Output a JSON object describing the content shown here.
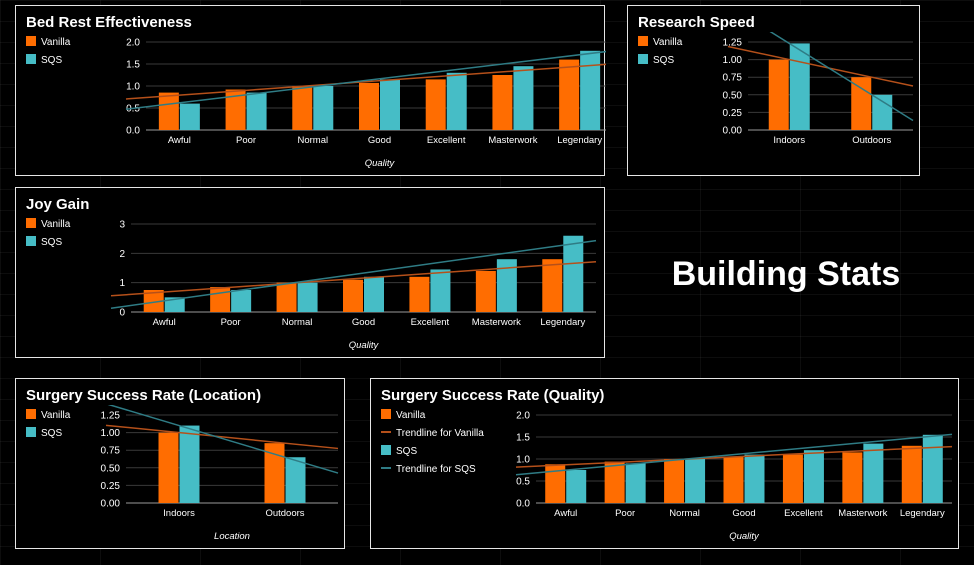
{
  "page_title": "Building Stats",
  "colors": {
    "vanilla": "#ff6d01",
    "sqs": "#46bdc6",
    "trend_vanilla": "#b5501a",
    "trend_sqs": "#2f7c85"
  },
  "chart_data": [
    {
      "id": "bed-rest",
      "type": "bar",
      "title": "Bed Rest Effectiveness",
      "xlabel": "Quality",
      "ylabel": "",
      "categories": [
        "Awful",
        "Poor",
        "Normal",
        "Good",
        "Excellent",
        "Masterwork",
        "Legendary"
      ],
      "series": [
        {
          "name": "Vanilla",
          "values": [
            0.85,
            0.92,
            1.0,
            1.07,
            1.15,
            1.25,
            1.6
          ]
        },
        {
          "name": "SQS",
          "values": [
            0.6,
            0.85,
            1.0,
            1.15,
            1.3,
            1.45,
            1.8
          ]
        }
      ],
      "trendlines": true,
      "ylim": [
        0,
        2
      ],
      "yticks": [
        "0.0",
        "0.5",
        "1.0",
        "1.5",
        "2.0"
      ],
      "legend": [
        {
          "label": "Vanilla",
          "kind": "box",
          "series": "vanilla"
        },
        {
          "label": "SQS",
          "kind": "box",
          "series": "sqs"
        }
      ],
      "legend_position": "top-left",
      "grid": true
    },
    {
      "id": "research-speed",
      "type": "bar",
      "title": "Research Speed",
      "xlabel": "",
      "ylabel": "",
      "categories": [
        "Indoors",
        "Outdoors"
      ],
      "series": [
        {
          "name": "Vanilla",
          "values": [
            1.0,
            0.75
          ]
        },
        {
          "name": "SQS",
          "values": [
            1.23,
            0.5
          ]
        }
      ],
      "trendlines": true,
      "ylim": [
        0,
        1.25
      ],
      "yticks": [
        "0.00",
        "0.25",
        "0.50",
        "0.75",
        "1.00",
        "1.25"
      ],
      "legend": [
        {
          "label": "Vanilla",
          "kind": "box",
          "series": "vanilla"
        },
        {
          "label": "SQS",
          "kind": "box",
          "series": "sqs"
        }
      ],
      "legend_position": "top-left",
      "grid": true
    },
    {
      "id": "joy-gain",
      "type": "bar",
      "title": "Joy Gain",
      "xlabel": "Quality",
      "ylabel": "",
      "categories": [
        "Awful",
        "Poor",
        "Normal",
        "Good",
        "Excellent",
        "Masterwork",
        "Legendary"
      ],
      "series": [
        {
          "name": "Vanilla",
          "values": [
            0.75,
            0.85,
            1.0,
            1.1,
            1.2,
            1.4,
            1.8
          ]
        },
        {
          "name": "SQS",
          "values": [
            0.5,
            0.75,
            1.0,
            1.2,
            1.45,
            1.8,
            2.6
          ]
        }
      ],
      "trendlines": true,
      "ylim": [
        0,
        3
      ],
      "yticks": [
        "0",
        "1",
        "2",
        "3"
      ],
      "legend": [
        {
          "label": "Vanilla",
          "kind": "box",
          "series": "vanilla"
        },
        {
          "label": "SQS",
          "kind": "box",
          "series": "sqs"
        }
      ],
      "legend_position": "top-left",
      "grid": true
    },
    {
      "id": "surgery-location",
      "type": "bar",
      "title": "Surgery Success Rate (Location)",
      "xlabel": "Location",
      "ylabel": "",
      "categories": [
        "Indoors",
        "Outdoors"
      ],
      "series": [
        {
          "name": "Vanilla",
          "values": [
            1.0,
            0.85
          ]
        },
        {
          "name": "SQS",
          "values": [
            1.1,
            0.65
          ]
        }
      ],
      "trendlines": true,
      "ylim": [
        0,
        1.25
      ],
      "yticks": [
        "0.00",
        "0.25",
        "0.50",
        "0.75",
        "1.00",
        "1.25"
      ],
      "legend": [
        {
          "label": "Vanilla",
          "kind": "box",
          "series": "vanilla"
        },
        {
          "label": "SQS",
          "kind": "box",
          "series": "sqs"
        }
      ],
      "legend_position": "top-left",
      "grid": true
    },
    {
      "id": "surgery-quality",
      "type": "bar",
      "title": "Surgery Success Rate (Quality)",
      "xlabel": "Quality",
      "ylabel": "",
      "categories": [
        "Awful",
        "Poor",
        "Normal",
        "Good",
        "Excellent",
        "Masterwork",
        "Legendary"
      ],
      "series": [
        {
          "name": "Vanilla",
          "values": [
            0.88,
            0.94,
            1.0,
            1.05,
            1.1,
            1.15,
            1.3
          ]
        },
        {
          "name": "SQS",
          "values": [
            0.75,
            0.9,
            1.0,
            1.1,
            1.2,
            1.35,
            1.55
          ]
        }
      ],
      "trendlines": true,
      "ylim": [
        0,
        2
      ],
      "yticks": [
        "0.0",
        "0.5",
        "1.0",
        "1.5",
        "2.0"
      ],
      "legend": [
        {
          "label": "Vanilla",
          "kind": "box",
          "series": "vanilla"
        },
        {
          "label": "Trendline for Vanilla",
          "kind": "line",
          "series": "trend_vanilla"
        },
        {
          "label": "SQS",
          "kind": "box",
          "series": "sqs"
        },
        {
          "label": "Trendline for SQS",
          "kind": "line",
          "series": "trend_sqs"
        }
      ],
      "legend_position": "top-left",
      "grid": true
    }
  ]
}
